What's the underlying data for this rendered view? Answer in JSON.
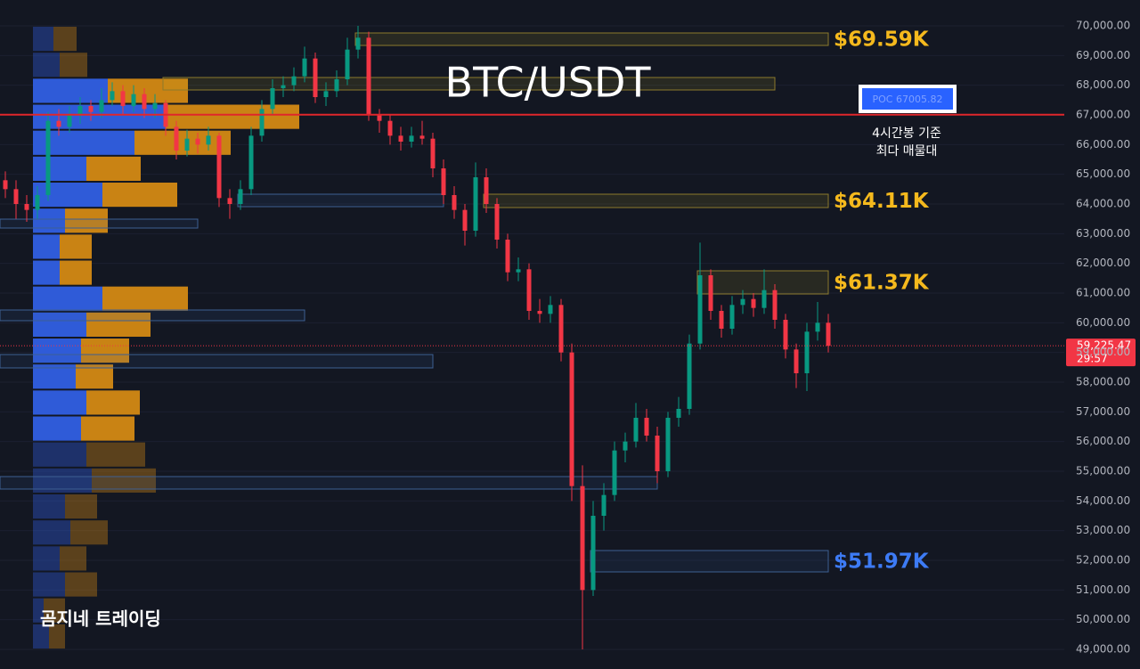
{
  "chart_data": {
    "type": "candlestick",
    "title": "BTC/USDT",
    "watermark": "곰지네 트레이딩",
    "up_color": "#089981",
    "down_color": "#f23645",
    "ylim": [
      48340,
      70870
    ],
    "yticks": [
      {
        "value": 49000,
        "label": "49,000.00"
      },
      {
        "value": 50000,
        "label": "50,000.00"
      },
      {
        "value": 51000,
        "label": "51,000.00"
      },
      {
        "value": 52000,
        "label": "52,000.00"
      },
      {
        "value": 53000,
        "label": "53,000.00"
      },
      {
        "value": 54000,
        "label": "54,000.00"
      },
      {
        "value": 55000,
        "label": "55,000.00"
      },
      {
        "value": 56000,
        "label": "56,000.00"
      },
      {
        "value": 57000,
        "label": "57,000.00"
      },
      {
        "value": 58000,
        "label": "58,000.00"
      },
      {
        "value": 59000,
        "label": "59,000.00"
      },
      {
        "value": 60000,
        "label": "60,000.00"
      },
      {
        "value": 61000,
        "label": "61,000.00"
      },
      {
        "value": 62000,
        "label": "62,000.00"
      },
      {
        "value": 63000,
        "label": "63,000.00"
      },
      {
        "value": 64000,
        "label": "64,000.00"
      },
      {
        "value": 65000,
        "label": "65,000.00"
      },
      {
        "value": 66000,
        "label": "66,000.00"
      },
      {
        "value": 67000,
        "label": "67,000.00"
      },
      {
        "value": 68000,
        "label": "68,000.00"
      },
      {
        "value": 69000,
        "label": "69,000.00"
      },
      {
        "value": 70000,
        "label": "70,000.00"
      }
    ],
    "last_price": {
      "value": 59225.47,
      "label": "59,225.47",
      "countdown": "29:57"
    },
    "poc": {
      "value": 67005.82,
      "label": "POC  67005.82",
      "note": [
        "4시간봉 기준",
        "최다 매물대"
      ]
    },
    "candles": [
      [
        64800,
        65100,
        64200,
        64500
      ],
      [
        64500,
        64800,
        63500,
        64000
      ],
      [
        64000,
        64300,
        63400,
        63800
      ],
      [
        63800,
        64600,
        63500,
        64300
      ],
      [
        64300,
        67100,
        64100,
        66800
      ],
      [
        66800,
        67200,
        66300,
        66600
      ],
      [
        66600,
        67300,
        66400,
        67000
      ],
      [
        67000,
        67600,
        66700,
        67300
      ],
      [
        67300,
        67500,
        66800,
        67100
      ],
      [
        67100,
        67900,
        66900,
        67500
      ],
      [
        67500,
        68100,
        67300,
        67800
      ],
      [
        67800,
        68000,
        67000,
        67300
      ],
      [
        67300,
        68000,
        67100,
        67700
      ],
      [
        67700,
        67900,
        66900,
        67200
      ],
      [
        67200,
        67700,
        66900,
        67400
      ],
      [
        67400,
        67500,
        66300,
        66600
      ],
      [
        66600,
        66800,
        65500,
        65800
      ],
      [
        65800,
        66500,
        65600,
        66200
      ],
      [
        66200,
        66400,
        65700,
        66000
      ],
      [
        66000,
        66600,
        65800,
        66300
      ],
      [
        66300,
        66400,
        63900,
        64200
      ],
      [
        64200,
        64500,
        63500,
        64000
      ],
      [
        64000,
        64800,
        63800,
        64500
      ],
      [
        64500,
        66600,
        64300,
        66300
      ],
      [
        66300,
        67500,
        66100,
        67200
      ],
      [
        67200,
        68200,
        67000,
        67900
      ],
      [
        67900,
        68300,
        67600,
        68000
      ],
      [
        68000,
        68600,
        67800,
        68300
      ],
      [
        68300,
        69300,
        68100,
        68900
      ],
      [
        68900,
        69100,
        67400,
        67600
      ],
      [
        67600,
        68100,
        67300,
        67800
      ],
      [
        67800,
        68500,
        67600,
        68200
      ],
      [
        68200,
        69600,
        68000,
        69200
      ],
      [
        69200,
        70000,
        68900,
        69600
      ],
      [
        69600,
        69800,
        66800,
        67000
      ],
      [
        67000,
        67200,
        66400,
        66800
      ],
      [
        66800,
        67000,
        66000,
        66300
      ],
      [
        66300,
        66600,
        65800,
        66100
      ],
      [
        66100,
        66600,
        65900,
        66300
      ],
      [
        66300,
        66800,
        66000,
        66200
      ],
      [
        66200,
        66400,
        64900,
        65200
      ],
      [
        65200,
        65500,
        64000,
        64300
      ],
      [
        64300,
        64600,
        63500,
        63800
      ],
      [
        63800,
        64000,
        62600,
        63100
      ],
      [
        63100,
        65400,
        62900,
        64900
      ],
      [
        64900,
        65200,
        63700,
        64000
      ],
      [
        64000,
        64200,
        62500,
        62800
      ],
      [
        62800,
        63000,
        61400,
        61700
      ],
      [
        61700,
        62200,
        61400,
        61800
      ],
      [
        61800,
        62000,
        60100,
        60400
      ],
      [
        60400,
        60800,
        60000,
        60300
      ],
      [
        60300,
        60900,
        60000,
        60600
      ],
      [
        60600,
        60800,
        58700,
        59000
      ],
      [
        59000,
        59300,
        54000,
        54500
      ],
      [
        54500,
        55200,
        49000,
        51000
      ],
      [
        51000,
        54000,
        50800,
        53500
      ],
      [
        53500,
        54600,
        53000,
        54200
      ],
      [
        54200,
        56000,
        54000,
        55700
      ],
      [
        55700,
        56300,
        55300,
        56000
      ],
      [
        56000,
        57300,
        55800,
        56800
      ],
      [
        56800,
        57100,
        56000,
        56200
      ],
      [
        56200,
        56500,
        54600,
        55000
      ],
      [
        55000,
        57000,
        54800,
        56800
      ],
      [
        56800,
        57500,
        56500,
        57100
      ],
      [
        57100,
        59600,
        56900,
        59300
      ],
      [
        59300,
        62700,
        59100,
        61600
      ],
      [
        61600,
        61800,
        60100,
        60400
      ],
      [
        60400,
        60600,
        59500,
        59800
      ],
      [
        59800,
        60900,
        59600,
        60600
      ],
      [
        60600,
        61100,
        60300,
        60800
      ],
      [
        60800,
        61000,
        60200,
        60500
      ],
      [
        60500,
        61800,
        60300,
        61100
      ],
      [
        61100,
        61300,
        59800,
        60100
      ],
      [
        60100,
        60300,
        58800,
        59100
      ],
      [
        59100,
        59300,
        57800,
        58300
      ],
      [
        58300,
        60000,
        57700,
        59700
      ],
      [
        59700,
        60700,
        59400,
        60000
      ],
      [
        60000,
        60300,
        59000,
        59225.47
      ]
    ],
    "boxes": [
      {
        "low": 69340,
        "high": 69760,
        "from": 33,
        "to": 77,
        "style": "yellow",
        "label": "$69.59K"
      },
      {
        "low": 67840,
        "high": 68260,
        "from": 15,
        "to": 72,
        "style": "yellow"
      },
      {
        "low": 63880,
        "high": 64330,
        "from": 45,
        "to": 77,
        "style": "yellow",
        "label": "$64.11K"
      },
      {
        "low": 60970,
        "high": 61750,
        "from": 65,
        "to": 77,
        "style": "yellow",
        "label": "$61.37K"
      },
      {
        "low": 51610,
        "high": 52330,
        "from": 55,
        "to": 77,
        "style": "blue",
        "label": "$51.97K"
      },
      {
        "low": 63910,
        "high": 64330,
        "from": 22,
        "to": 41,
        "style": "blue"
      },
      {
        "low": 63190,
        "high": 63490,
        "from": 0,
        "to": 18,
        "style": "blue"
      },
      {
        "low": 60070,
        "high": 60430,
        "from": 0,
        "to": 28,
        "style": "blue"
      },
      {
        "low": 58480,
        "high": 58930,
        "from": 0,
        "to": 40,
        "style": "blue"
      },
      {
        "low": 54400,
        "high": 54820,
        "from": 0,
        "to": 61,
        "style": "blue"
      }
    ],
    "profile": {
      "lim": [
        49000,
        70000
      ],
      "value_area": [
        56000,
        68250
      ],
      "buy_color": "#2f5bd8",
      "sell_color": "#c98314",
      "buy": [
        18,
        12,
        36,
        30,
        42,
        36,
        66,
        60,
        54,
        60,
        48,
        54,
        60,
        78,
        30,
        30,
        36,
        78,
        60,
        114,
        149,
        84,
        30,
        23
      ],
      "sell": [
        18,
        24,
        36,
        30,
        42,
        36,
        72,
        66,
        60,
        60,
        42,
        54,
        72,
        96,
        36,
        36,
        48,
        84,
        61,
        108,
        150,
        90,
        31,
        26
      ]
    }
  }
}
